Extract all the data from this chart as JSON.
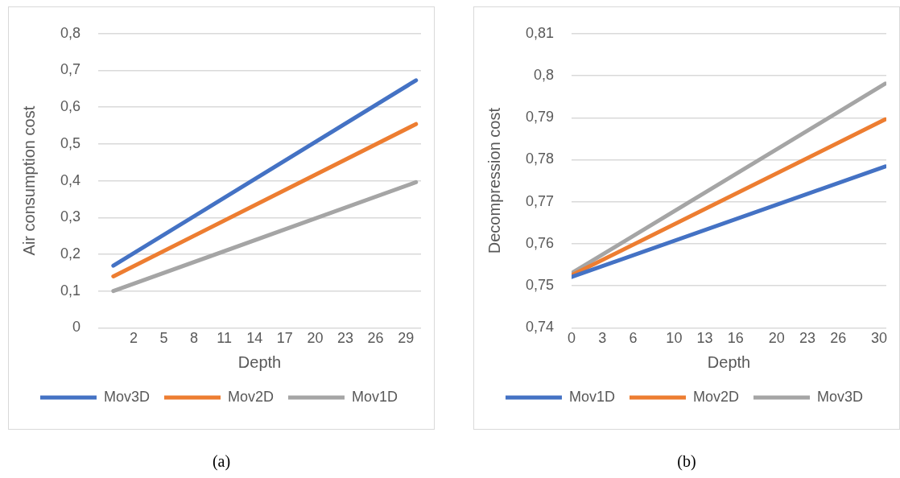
{
  "chart_data": [
    {
      "type": "line",
      "xlabel": "Depth",
      "ylabel": "Air consumption cost",
      "annotations": [
        "(a)"
      ],
      "xlim": [
        -1.5,
        30.5
      ],
      "xticks": [
        2,
        5,
        8,
        11,
        14,
        17,
        20,
        23,
        26,
        29
      ],
      "ylim": [
        0,
        0.8
      ],
      "yticks": [
        {
          "value": 0,
          "label": "0"
        },
        {
          "value": 0.1,
          "label": "0,1"
        },
        {
          "value": 0.2,
          "label": "0,2"
        },
        {
          "value": 0.3,
          "label": "0,3"
        },
        {
          "value": 0.4,
          "label": "0,4"
        },
        {
          "value": 0.5,
          "label": "0,5"
        },
        {
          "value": 0.6,
          "label": "0,6"
        },
        {
          "value": 0.7,
          "label": "0,7"
        },
        {
          "value": 0.8,
          "label": "0,8"
        }
      ],
      "grid": "y",
      "legend": "bottom",
      "marker": "none",
      "line_style": "solid",
      "series": [
        {
          "name": "Mov3D",
          "color": "#4472c4",
          "x": [
            0,
            30
          ],
          "values": [
            0.169,
            0.673
          ]
        },
        {
          "name": "Mov2D",
          "color": "#ed7d31",
          "x": [
            0,
            30
          ],
          "values": [
            0.14,
            0.554
          ]
        },
        {
          "name": "Mov1D",
          "color": "#a5a5a5",
          "x": [
            0,
            30
          ],
          "values": [
            0.1,
            0.396
          ]
        }
      ]
    },
    {
      "type": "line",
      "xlabel": "Depth",
      "ylabel": "Decompression cost",
      "annotations": [
        "(b)"
      ],
      "xlim": [
        0,
        30.7
      ],
      "xticks": [
        0,
        3,
        6,
        10,
        13,
        16,
        20,
        23,
        26,
        30
      ],
      "ylim": [
        0.74,
        0.81
      ],
      "yticks": [
        {
          "value": 0.74,
          "label": "0,74"
        },
        {
          "value": 0.75,
          "label": "0,75"
        },
        {
          "value": 0.76,
          "label": "0,76"
        },
        {
          "value": 0.77,
          "label": "0,77"
        },
        {
          "value": 0.78,
          "label": "0,78"
        },
        {
          "value": 0.79,
          "label": "0,79"
        },
        {
          "value": 0.8,
          "label": "0,8"
        },
        {
          "value": 0.81,
          "label": "0,81"
        }
      ],
      "grid": "y",
      "legend": "bottom",
      "marker": "none",
      "line_style": "solid",
      "series": [
        {
          "name": "Mov1D",
          "color": "#4472c4",
          "x": [
            0,
            30.6
          ],
          "values": [
            0.7521,
            0.7784
          ]
        },
        {
          "name": "Mov2D",
          "color": "#ed7d31",
          "x": [
            0,
            30.6
          ],
          "values": [
            0.7525,
            0.7896
          ]
        },
        {
          "name": "Mov3D",
          "color": "#a5a5a5",
          "x": [
            0,
            30.6
          ],
          "values": [
            0.753,
            0.7981
          ]
        }
      ]
    }
  ]
}
